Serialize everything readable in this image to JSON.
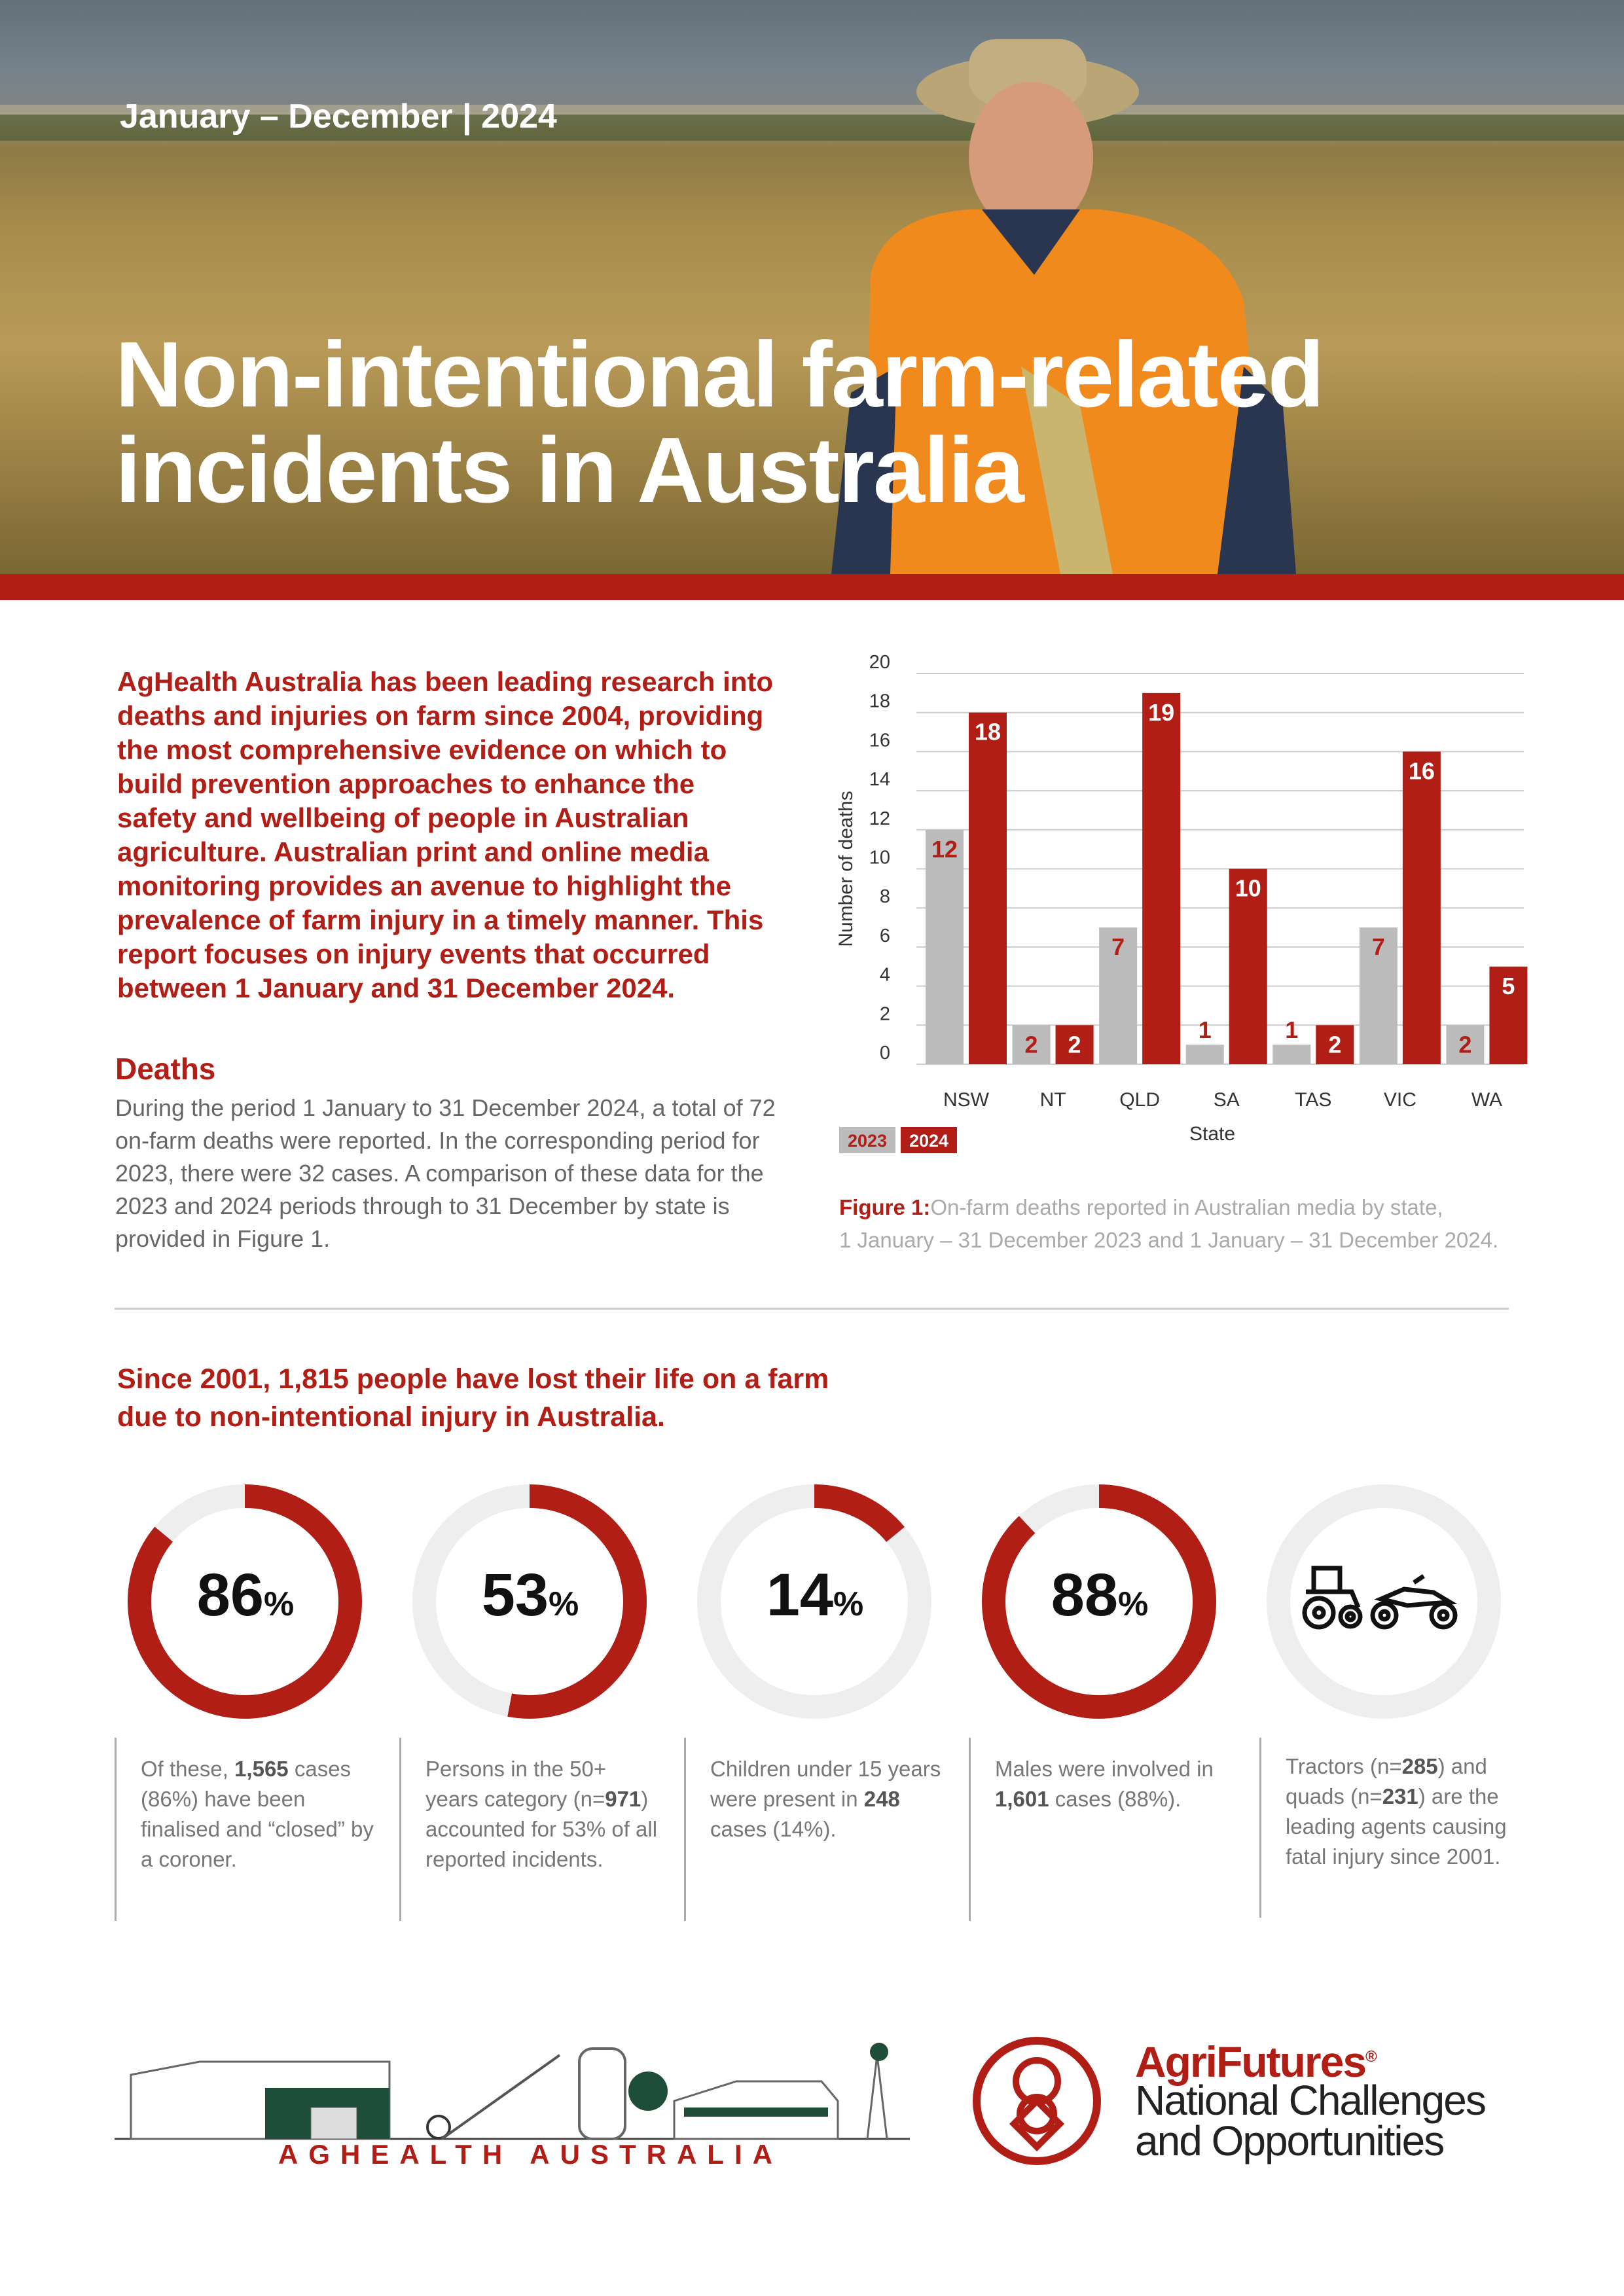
{
  "header": {
    "date_range": "January – December | 2024",
    "title_line1": "Non-intentional farm-related",
    "title_line2": "incidents in Australia"
  },
  "intro": "AgHealth Australia has been leading research into deaths and injuries on farm since 2004, providing the most comprehensive evidence on which to build prevention approaches to enhance the safety and wellbeing of people in Australian agriculture. Australian print and online media monitoring provides an avenue to highlight the prevalence of farm injury in a timely manner. This report focuses on injury events that occurred between 1 January and 31 December 2024.",
  "deaths": {
    "heading": "Deaths",
    "body": "During the period 1 January to 31 December 2024, a total of 72 on-farm deaths were reported. In the corresponding period for 2023, there were 32 cases. A comparison of these data for the 2023 and 2024 periods through to 31 December by state is provided in Figure 1."
  },
  "figure": {
    "label": "Figure 1:",
    "caption_line1": "On-farm deaths reported in Australian media by state,",
    "caption_line2": "1 January – 31 December 2023 and 1 January – 31 December 2024."
  },
  "chart_data": {
    "type": "bar",
    "categories": [
      "NSW",
      "NT",
      "QLD",
      "SA",
      "TAS",
      "VIC",
      "WA"
    ],
    "series": [
      {
        "name": "2023",
        "values": [
          12,
          2,
          7,
          1,
          1,
          7,
          2
        ],
        "color": "#bbbbbb"
      },
      {
        "name": "2024",
        "values": [
          18,
          2,
          19,
          10,
          2,
          16,
          5
        ],
        "color": "#b01e16"
      }
    ],
    "xlabel": "State",
    "ylabel": "Number of deaths",
    "ylim": [
      0,
      20
    ],
    "yticks": [
      "0",
      "2",
      "4",
      "6",
      "8",
      "10",
      "12",
      "14",
      "16",
      "18",
      "20"
    ],
    "grid": true,
    "legend": "bottom-left"
  },
  "since": {
    "line1": "Since 2001, 1,815 people have lost their life on a farm",
    "line2": "due to non-intentional injury in Australia."
  },
  "stats": [
    {
      "value": 86,
      "pct": "86",
      "unit": "%",
      "pre": "Of these, ",
      "bold": "1,565",
      "post": " cases (86%) have been finalised and “closed” by a coroner."
    },
    {
      "value": 53,
      "pct": "53",
      "unit": "%",
      "pre": "Persons in the 50+ years category (n=",
      "bold": "971",
      "post": ") accounted for 53% of all reported incidents."
    },
    {
      "value": 14,
      "pct": "14",
      "unit": "%",
      "pre": "Children under 15 years were present in ",
      "bold": "248",
      "post": " cases (14%)."
    },
    {
      "value": 88,
      "pct": "88",
      "unit": "%",
      "pre": "Males were involved in ",
      "bold": "1,601",
      "post": " cases (88%)."
    }
  ],
  "stat5": {
    "pre": "Tractors (n=",
    "bold1": "285",
    "mid": ") and quads (n=",
    "bold2": "231",
    "post": ") are the leading agents causing fatal injury since 2001."
  },
  "footer": {
    "aghealth": "AGHEALTH AUSTRALIA",
    "agrifutures": "AgriFutures",
    "agrifutures_mark": "®",
    "national_line1": "National Challenges",
    "national_line2": "and Opportunities"
  },
  "colors": {
    "accent": "#b01e16",
    "gray": "#bbbbbb",
    "ring_bg": "#eeeeee"
  }
}
